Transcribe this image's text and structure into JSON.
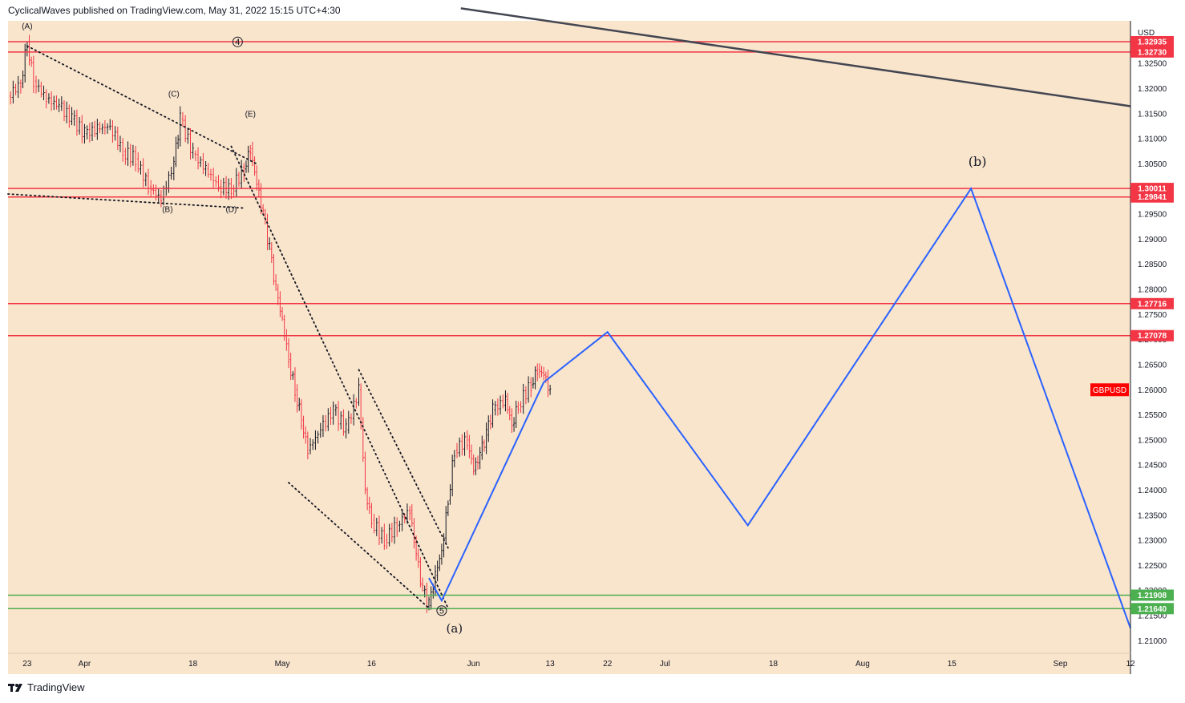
{
  "header": {
    "text": "CyclicalWaves published on TradingView.com, May 31, 2022 15:15 UTC+4:30"
  },
  "footer": {
    "brand": "TradingView"
  },
  "colors": {
    "background": "#f9e4cc",
    "hline_red": "#f23645",
    "hline_green": "#4caf50",
    "projection": "#2962ff",
    "trendline": "#434651",
    "candle_up": "#131722",
    "candle_down": "#f23645"
  },
  "chart_data": {
    "type": "candlestick",
    "symbol": "GBPUSD",
    "currency_label": "USD",
    "ylim": [
      1.2075,
      1.3335
    ],
    "y_ticks": [
      "1.21000",
      "1.21500",
      "1.22000",
      "1.22500",
      "1.23000",
      "1.23500",
      "1.24000",
      "1.24500",
      "1.25000",
      "1.25500",
      "1.26000",
      "1.26500",
      "1.27000",
      "1.27500",
      "1.28000",
      "1.28500",
      "1.29000",
      "1.29500",
      "1.30000",
      "1.30500",
      "1.31000",
      "1.31500",
      "1.32000",
      "1.32500"
    ],
    "x_range": [
      "2022-03-23",
      "2022-09-12"
    ],
    "x_ticks": [
      {
        "label": "23",
        "date": "2022-03-23"
      },
      {
        "label": "Apr",
        "date": "2022-04-01"
      },
      {
        "label": "18",
        "date": "2022-04-18"
      },
      {
        "label": "May",
        "date": "2022-05-02"
      },
      {
        "label": "16",
        "date": "2022-05-16"
      },
      {
        "label": "Jun",
        "date": "2022-06-01"
      },
      {
        "label": "13",
        "date": "2022-06-13"
      },
      {
        "label": "22",
        "date": "2022-06-22"
      },
      {
        "label": "Jul",
        "date": "2022-07-01"
      },
      {
        "label": "18",
        "date": "2022-07-18"
      },
      {
        "label": "Aug",
        "date": "2022-08-01"
      },
      {
        "label": "15",
        "date": "2022-08-15"
      },
      {
        "label": "Sep",
        "date": "2022-09-01"
      },
      {
        "label": "12",
        "date": "2022-09-12"
      }
    ],
    "price_series": [
      [
        "2022-03-20",
        1.3185
      ],
      [
        "2022-03-22",
        1.321
      ],
      [
        "2022-03-23",
        1.3293
      ],
      [
        "2022-03-24",
        1.3215
      ],
      [
        "2022-03-26",
        1.318
      ],
      [
        "2022-03-28",
        1.3165
      ],
      [
        "2022-03-30",
        1.314
      ],
      [
        "2022-04-01",
        1.311
      ],
      [
        "2022-04-03",
        1.312
      ],
      [
        "2022-04-05",
        1.3125
      ],
      [
        "2022-04-07",
        1.3075
      ],
      [
        "2022-04-09",
        1.306
      ],
      [
        "2022-04-11",
        1.3005
      ],
      [
        "2022-04-13",
        1.298
      ],
      [
        "2022-04-15",
        1.305
      ],
      [
        "2022-04-16",
        1.314
      ],
      [
        "2022-04-18",
        1.307
      ],
      [
        "2022-04-20",
        1.304
      ],
      [
        "2022-04-22",
        1.3005
      ],
      [
        "2022-04-24",
        1.3
      ],
      [
        "2022-04-26",
        1.304
      ],
      [
        "2022-04-27",
        1.308
      ],
      [
        "2022-04-28",
        1.301
      ],
      [
        "2022-04-29",
        1.295
      ],
      [
        "2022-04-30",
        1.288
      ],
      [
        "2022-05-01",
        1.28
      ],
      [
        "2022-05-02",
        1.274
      ],
      [
        "2022-05-03",
        1.266
      ],
      [
        "2022-05-04",
        1.26
      ],
      [
        "2022-05-05",
        1.254
      ],
      [
        "2022-05-06",
        1.248
      ],
      [
        "2022-05-08",
        1.252
      ],
      [
        "2022-05-10",
        1.256
      ],
      [
        "2022-05-12",
        1.252
      ],
      [
        "2022-05-14",
        1.26
      ],
      [
        "2022-05-15",
        1.24
      ],
      [
        "2022-05-16",
        1.234
      ],
      [
        "2022-05-18",
        1.23
      ],
      [
        "2022-05-20",
        1.233
      ],
      [
        "2022-05-22",
        1.236
      ],
      [
        "2022-05-23",
        1.227
      ],
      [
        "2022-05-24",
        1.22
      ],
      [
        "2022-05-25",
        1.217
      ],
      [
        "2022-05-26",
        1.223
      ],
      [
        "2022-05-27",
        1.228
      ],
      [
        "2022-05-28",
        1.238
      ],
      [
        "2022-05-29",
        1.248
      ],
      [
        "2022-05-31",
        1.25
      ],
      [
        "2022-06-01",
        1.244
      ],
      [
        "2022-06-02",
        1.247
      ],
      [
        "2022-06-03",
        1.251
      ],
      [
        "2022-06-04",
        1.256
      ],
      [
        "2022-06-06",
        1.258
      ],
      [
        "2022-06-07",
        1.253
      ],
      [
        "2022-06-08",
        1.257
      ],
      [
        "2022-06-10",
        1.261
      ],
      [
        "2022-06-11",
        1.264
      ],
      [
        "2022-06-12",
        1.263
      ],
      [
        "2022-06-13",
        1.2595
      ]
    ],
    "labels": [
      {
        "text": "(A)"
      },
      {
        "text": "(B)"
      },
      {
        "text": "(C)"
      },
      {
        "text": "(D)"
      },
      {
        "text": "(E)"
      },
      {
        "text": "(a)"
      },
      {
        "text": "(b)"
      },
      {
        "text": "4"
      },
      {
        "text": "5"
      }
    ],
    "horizontal_levels": [
      {
        "value": 1.32935,
        "label": "1.32935",
        "color": "red"
      },
      {
        "value": 1.3273,
        "label": "1.32730",
        "color": "red"
      },
      {
        "value": 1.30011,
        "label": "1.30011",
        "color": "red"
      },
      {
        "value": 1.29841,
        "label": "1.29841",
        "color": "red"
      },
      {
        "value": 1.27716,
        "label": "1.27716",
        "color": "red"
      },
      {
        "value": 1.27078,
        "label": "1.27078",
        "color": "red"
      },
      {
        "value": 1.21908,
        "label": "1.21908",
        "color": "green"
      },
      {
        "value": 1.2164,
        "label": "1.21640",
        "color": "green"
      }
    ],
    "current_price_label": "GBPUSD",
    "current_price": 1.26,
    "projection_path": [
      [
        "2022-05-25",
        1.2225
      ],
      [
        "2022-05-27",
        1.218
      ],
      [
        "2022-06-12",
        1.2615
      ],
      [
        "2022-06-22",
        1.2715
      ],
      [
        "2022-07-14",
        1.233
      ],
      [
        "2022-08-18",
        1.3001
      ],
      [
        "2022-09-12",
        1.2125
      ]
    ],
    "trend_line": [
      [
        "2022-05-30",
        1.336
      ],
      [
        "2022-09-12",
        1.3165
      ]
    ]
  }
}
